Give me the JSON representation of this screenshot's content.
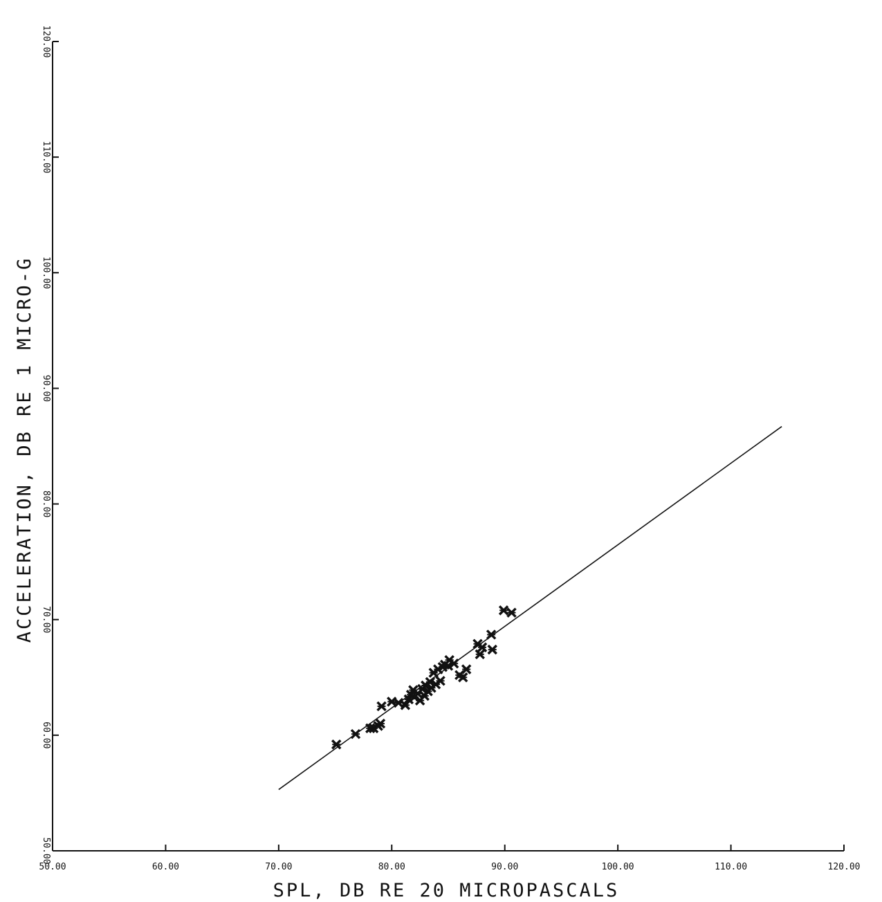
{
  "chart_data": {
    "type": "scatter",
    "title": "",
    "xlabel": "SPL, DB RE 20 MICROPASCALS",
    "ylabel": "ACCELERATION, DB RE 1 MICRO-G",
    "xlim": [
      50,
      120
    ],
    "ylim": [
      50,
      120
    ],
    "x_ticks": [
      50,
      60,
      70,
      80,
      90,
      100,
      110,
      120
    ],
    "y_ticks": [
      50,
      60,
      70,
      80,
      90,
      100,
      110,
      120
    ],
    "x_tick_labels": [
      "50.00",
      "60.00",
      "70.00",
      "80.00",
      "90.00",
      "100.00",
      "110.00",
      "120.00"
    ],
    "y_tick_labels": [
      "50.00",
      "60.00",
      "70.00",
      "80.00",
      "90.00",
      "100.00",
      "110.00",
      "120.00"
    ],
    "grid": false,
    "legend": "none",
    "colors": {
      "ink": "#111111",
      "background": "#ffffff"
    },
    "fit_line": {
      "x": [
        70.0,
        114.5
      ],
      "y": [
        55.3,
        86.7
      ]
    },
    "series": [
      {
        "marker": "x",
        "points": [
          [
            75.1,
            59.2
          ],
          [
            76.8,
            60.1
          ],
          [
            78.1,
            60.6
          ],
          [
            78.4,
            60.6
          ],
          [
            78.8,
            60.8
          ],
          [
            79.0,
            61.0
          ],
          [
            79.1,
            62.5
          ],
          [
            80.0,
            62.9
          ],
          [
            80.6,
            62.8
          ],
          [
            81.2,
            62.6
          ],
          [
            81.5,
            63.1
          ],
          [
            81.7,
            63.5
          ],
          [
            81.9,
            63.9
          ],
          [
            82.0,
            63.3
          ],
          [
            82.3,
            63.6
          ],
          [
            82.5,
            63.0
          ],
          [
            82.7,
            64.0
          ],
          [
            82.9,
            63.4
          ],
          [
            83.0,
            64.3
          ],
          [
            83.2,
            63.8
          ],
          [
            83.4,
            64.6
          ],
          [
            83.5,
            64.1
          ],
          [
            83.7,
            65.4
          ],
          [
            83.9,
            64.4
          ],
          [
            84.1,
            65.7
          ],
          [
            84.3,
            64.7
          ],
          [
            84.5,
            65.9
          ],
          [
            84.7,
            66.1
          ],
          [
            85.0,
            66.0
          ],
          [
            85.5,
            66.2
          ],
          [
            86.0,
            65.2
          ],
          [
            86.3,
            65.0
          ],
          [
            86.6,
            65.7
          ],
          [
            87.6,
            67.9
          ],
          [
            87.8,
            67.0
          ],
          [
            88.0,
            67.6
          ],
          [
            88.8,
            68.7
          ],
          [
            89.9,
            70.8
          ],
          [
            90.6,
            70.6
          ],
          [
            88.9,
            67.4
          ],
          [
            85.1,
            66.5
          ]
        ]
      }
    ]
  }
}
